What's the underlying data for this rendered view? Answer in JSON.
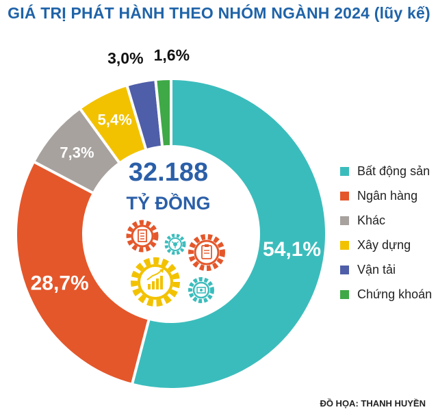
{
  "title": "GIÁ TRỊ PHÁT HÀNH THEO NHÓM NGÀNH 2024 (lũy kế)",
  "center": {
    "value": "32.188",
    "unit": "TỶ ĐỒNG"
  },
  "credit": "ĐỒ HỌA: THANH HUYỀN",
  "icons": [
    "document-gear-icon",
    "network-gear-icon",
    "clipboard-gear-icon",
    "growth-chart-gear-icon",
    "money-gear-icon"
  ],
  "chart_data": {
    "type": "pie",
    "variant": "donut",
    "title": "GIÁ TRỊ PHÁT HÀNH THEO NHÓM NGÀNH 2024 (lũy kế)",
    "unit": "%",
    "legend_position": "right",
    "total_label": "32.188 TỶ ĐỒNG",
    "categories": [
      "Bất động sản",
      "Ngân hàng",
      "Khác",
      "Xây dựng",
      "Vận tải",
      "Chứng khoán"
    ],
    "values": [
      54.1,
      28.7,
      7.3,
      5.4,
      3.0,
      1.6
    ],
    "labels": [
      "54,1%",
      "28,7%",
      "7,3%",
      "5,4%",
      "3,0%",
      "1,6%"
    ],
    "colors": [
      "#3bbcbc",
      "#e4572b",
      "#a7a29e",
      "#f2c200",
      "#4f5ea8",
      "#3fa947"
    ]
  }
}
